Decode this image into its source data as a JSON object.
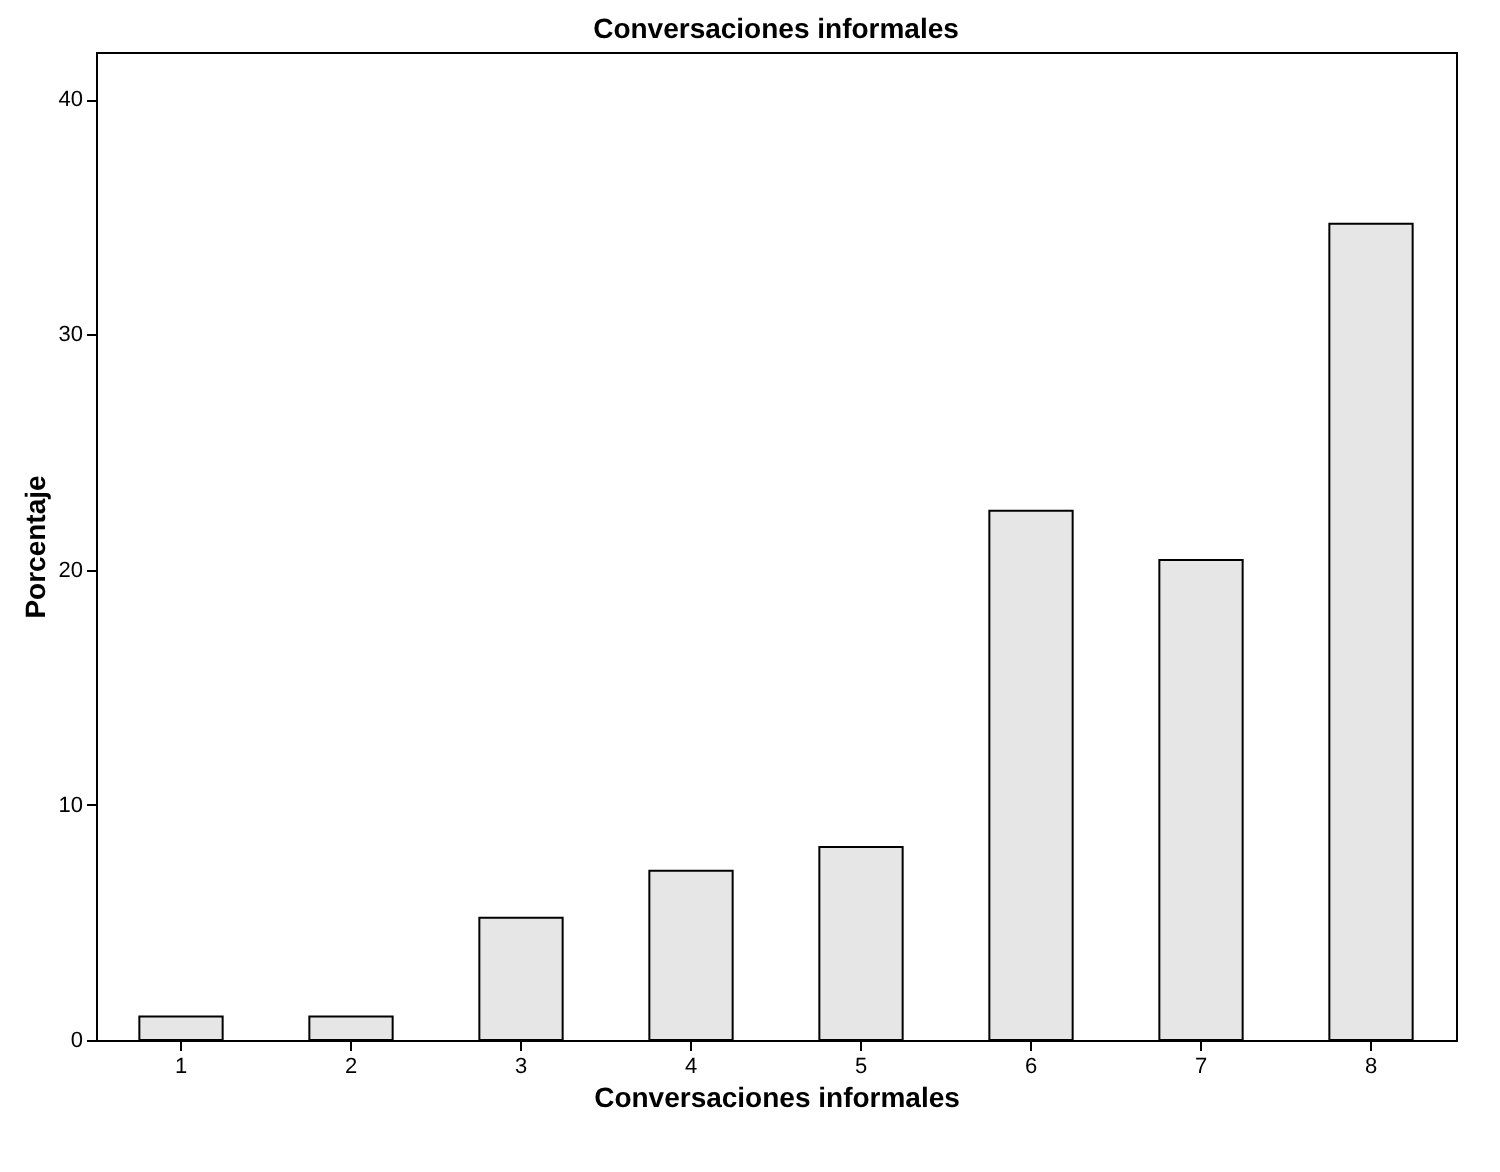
{
  "chart_data": {
    "type": "bar",
    "title": "Conversaciones informales",
    "xlabel": "Conversaciones informales",
    "ylabel": "Porcentaje",
    "categories": [
      "1",
      "2",
      "3",
      "4",
      "5",
      "6",
      "7",
      "8"
    ],
    "values": [
      1.0,
      1.0,
      5.2,
      7.2,
      8.2,
      22.5,
      20.4,
      34.7
    ],
    "color": "#e6e6e6",
    "ylim": [
      0,
      42
    ],
    "yticks": [
      0,
      10,
      20,
      30,
      40
    ],
    "grid": false
  }
}
